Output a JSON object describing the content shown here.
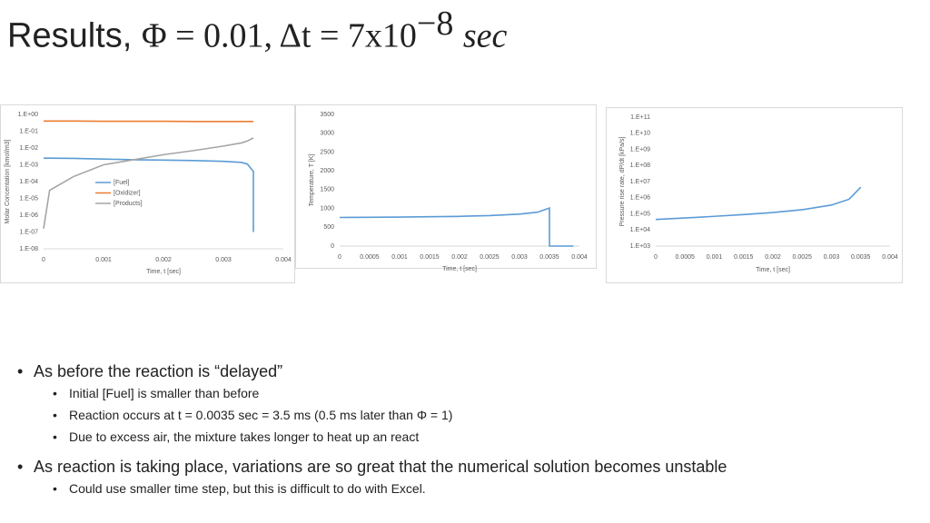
{
  "title": {
    "prefix": "Results,",
    "math": "Φ = 0.01, Δt = 7x10",
    "exponent": "−8",
    "unit": "sec"
  },
  "bullets": [
    {
      "level": 0,
      "text": "As before the reaction is “delayed”"
    },
    {
      "level": 1,
      "text": "Initial [Fuel] is smaller than before"
    },
    {
      "level": 1,
      "text": "Reaction occurs at t = 0.0035 sec = 3.5 ms (0.5 ms later than Φ = 1)"
    },
    {
      "level": 1,
      "text": "Due to excess air, the mixture takes longer to heat up an react"
    },
    {
      "level": 0,
      "text": "As reaction is taking place, variations are so great that the numerical solution becomes unstable"
    },
    {
      "level": 1,
      "text": "Could use smaller time step, but this is difficult to do with Excel."
    }
  ],
  "chart_data": [
    {
      "type": "line",
      "x_label": "Time, t [sec]",
      "y_label": "Molar Concentation [kmol/m3]",
      "yscale": "log",
      "grid": false,
      "legend": "left",
      "x": [
        0,
        0.0001,
        0.0005,
        0.001,
        0.0015,
        0.002,
        0.0025,
        0.003,
        0.0033,
        0.0034,
        0.0035,
        0.0035
      ],
      "series": [
        {
          "name": "[Fuel]",
          "color": "#5b9bd5",
          "values": [
            0.0025,
            0.0025,
            0.0024,
            0.0022,
            0.002,
            0.0019,
            0.0018,
            0.0016,
            0.0014,
            0.0011,
            0.0004,
            1e-07
          ]
        },
        {
          "name": "[Oxidizer]",
          "color": "#ed7d31",
          "values": [
            0.4,
            0.4,
            0.4,
            0.39,
            0.39,
            0.39,
            0.38,
            0.38,
            0.38,
            0.38,
            0.38,
            null
          ]
        },
        {
          "name": "[Products]",
          "color": "#a5a5a5",
          "values": [
            1.6e-07,
            3e-05,
            0.0002,
            0.001,
            0.002,
            0.004,
            0.007,
            0.013,
            0.02,
            0.026,
            0.04,
            null
          ]
        }
      ],
      "xlim": [
        0,
        0.004
      ],
      "xticks": [
        0,
        0.001,
        0.002,
        0.003,
        0.004
      ],
      "ylim": [
        1e-08,
        1
      ],
      "yticks": [
        {
          "value": 1e-08,
          "label": "1.E-08"
        },
        {
          "value": 1e-07,
          "label": "1.E-07"
        },
        {
          "value": 1e-06,
          "label": "1.E-06"
        },
        {
          "value": 1e-05,
          "label": "1.E-05"
        },
        {
          "value": 0.0001,
          "label": "1.E-04"
        },
        {
          "value": 0.001,
          "label": "1.E-03"
        },
        {
          "value": 0.01,
          "label": "1.E-02"
        },
        {
          "value": 0.1,
          "label": "1.E-01"
        },
        {
          "value": 1,
          "label": "1.E+00"
        }
      ]
    },
    {
      "type": "line",
      "x_label": "Time, t [sec]",
      "y_label": "Temperature, T [K]",
      "grid": false,
      "x": [
        0,
        0.0005,
        0.001,
        0.0015,
        0.002,
        0.0025,
        0.003,
        0.0033,
        0.0035,
        0.0035,
        0.0039
      ],
      "series": [
        {
          "color": "#5b9bd5",
          "values": [
            760,
            765,
            770,
            780,
            790,
            810,
            850,
            900,
            1010,
            0,
            0
          ]
        }
      ],
      "xlim": [
        0,
        0.004
      ],
      "xticks": [
        0,
        0.0005,
        0.001,
        0.0015,
        0.002,
        0.0025,
        0.003,
        0.0035,
        0.004
      ],
      "ylim": [
        0,
        3500
      ],
      "yticks": [
        0,
        500,
        1000,
        1500,
        2000,
        2500,
        3000,
        3500
      ]
    },
    {
      "type": "line",
      "x_label": "Time, t [sec]",
      "y_label": "Pressure rise rate, dP/dt [kPa/s]",
      "yscale": "log",
      "grid": false,
      "x": [
        0,
        0.0005,
        0.001,
        0.0015,
        0.002,
        0.0025,
        0.003,
        0.0033,
        0.0035
      ],
      "series": [
        {
          "color": "#5b9bd5",
          "values": [
            45000,
            55000,
            70000,
            90000,
            120000,
            180000,
            350000,
            800000,
            4500000
          ]
        }
      ],
      "xlim": [
        0,
        0.004
      ],
      "xticks": [
        0,
        0.0005,
        0.001,
        0.0015,
        0.002,
        0.0025,
        0.003,
        0.0035,
        0.004
      ],
      "ylim": [
        1000,
        100000000000
      ],
      "yticks": [
        {
          "value": 1000,
          "label": "1.E+03"
        },
        {
          "value": 10000,
          "label": "1.E+04"
        },
        {
          "value": 100000,
          "label": "1.E+05"
        },
        {
          "value": 1000000,
          "label": "1.E+06"
        },
        {
          "value": 10000000,
          "label": "1.E+07"
        },
        {
          "value": 100000000,
          "label": "1.E+08"
        },
        {
          "value": 1000000000,
          "label": "1.E+09"
        },
        {
          "value": 10000000000,
          "label": "1.E+10"
        },
        {
          "value": 100000000000,
          "label": "1.E+11"
        }
      ]
    }
  ]
}
